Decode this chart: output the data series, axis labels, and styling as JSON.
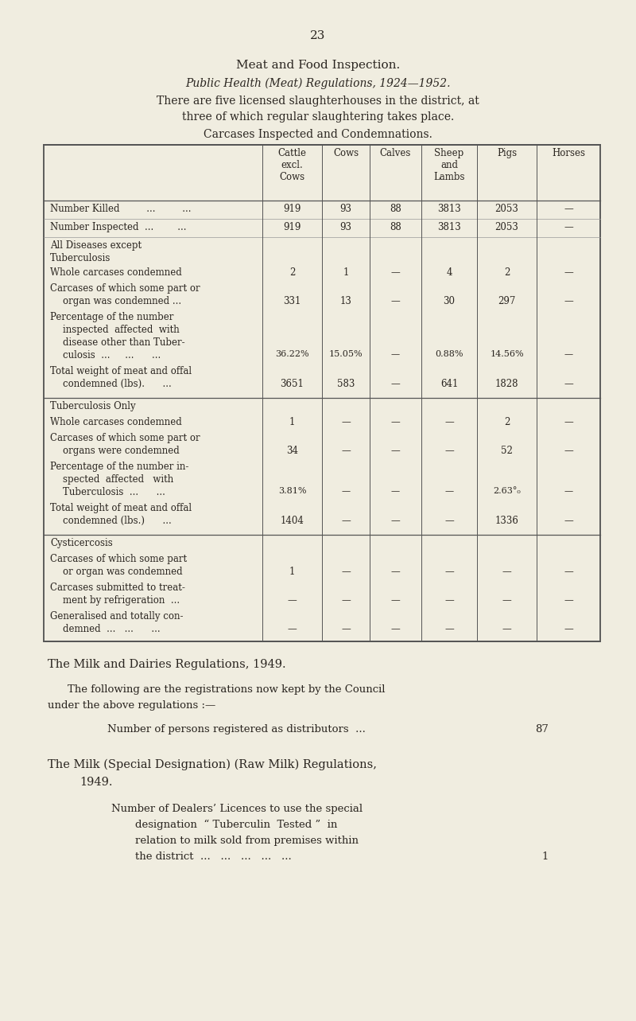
{
  "bg_color": "#f0ede0",
  "page_number": "23",
  "title1": "Meat and Food Inspection.",
  "title2": "Public Health (Meat) Regulations, 1924—1952.",
  "title3": "There are five licensed slaughterhouses in the district, at",
  "title4": "three of which regular slaughtering takes place.",
  "title5": "Carcases Inspected and Condemnations.",
  "col_headers": [
    "Cattle\nexcl.\nCows",
    "Cows",
    "Calves",
    "Sheep\nand\nLambs",
    "Pigs",
    "Horses"
  ],
  "milk_title": "The Milk and Dairies Regulations, 1949.",
  "milk_line1": "The following are the registrations now kept by the Council",
  "milk_line2": "under the above regulations :—",
  "milk_item1_label": "Number of persons registered as distributors  ...",
  "milk_item1_value": "87",
  "milk_title2a": "The Milk (Special Designation) (Raw Milk) Regulations,",
  "milk_title2b": "1949.",
  "milk_dealers1": "Number of Dealers’ Licences to use the special",
  "milk_dealers2": "designation  “ Tuberculin  Tested ”  in",
  "milk_dealers3": "relation to milk sold from premises within",
  "milk_dealers4": "the district  ...   ...   ...   ...   ...",
  "milk_dealers_value": "1"
}
